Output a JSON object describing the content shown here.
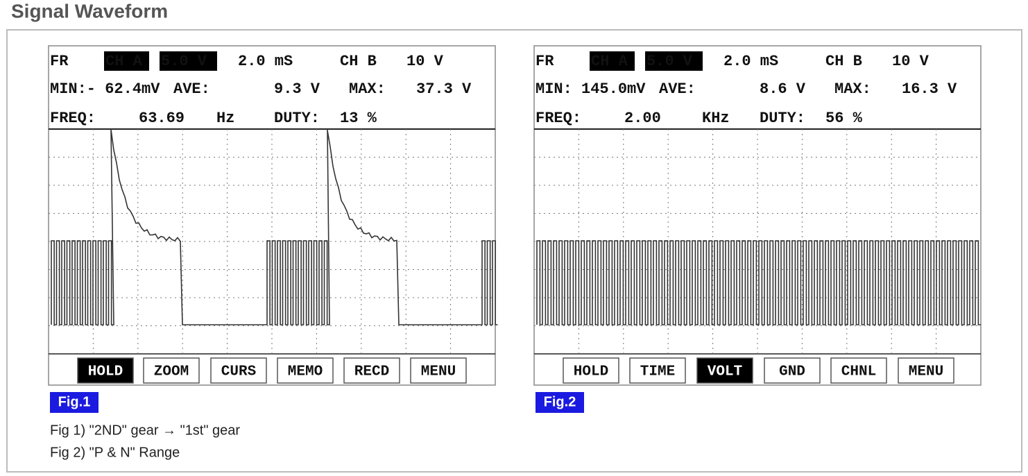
{
  "title": "Signal Waveform",
  "figures": [
    {
      "row1": [
        "FR",
        "CH A",
        "5.0 V",
        "2.0 mS",
        "CH B",
        "10 V"
      ],
      "row2": [
        "MIN:- 62.4mV",
        "AVE:",
        "9.3 V",
        "MAX:",
        "37.3 V"
      ],
      "row3": [
        "FREQ:",
        "63.69",
        "Hz",
        "DUTY:",
        "13 %"
      ],
      "buttons": [
        "HOLD",
        "ZOOM",
        "CURS",
        "MEMO",
        "RECD",
        "MENU"
      ],
      "label": "Fig.1"
    },
    {
      "row1": [
        "FR",
        "CH A",
        "5.0 V",
        "2.0 mS",
        "CH B",
        "10 V"
      ],
      "row2": [
        "MIN: 145.0mV",
        "AVE:",
        "8.6 V",
        "MAX:",
        "16.3 V"
      ],
      "row3": [
        "FREQ:",
        "2.00",
        "KHz",
        "DUTY:",
        "56 %"
      ],
      "buttons": [
        "HOLD",
        "TIME",
        "VOLT",
        "GND",
        "CHNL",
        "MENU"
      ],
      "label": "Fig.2"
    }
  ],
  "captions": [
    "Fig 1) \"2ND\" gear → \"1st\" gear",
    "Fig 2) \"P & N\" Range"
  ]
}
